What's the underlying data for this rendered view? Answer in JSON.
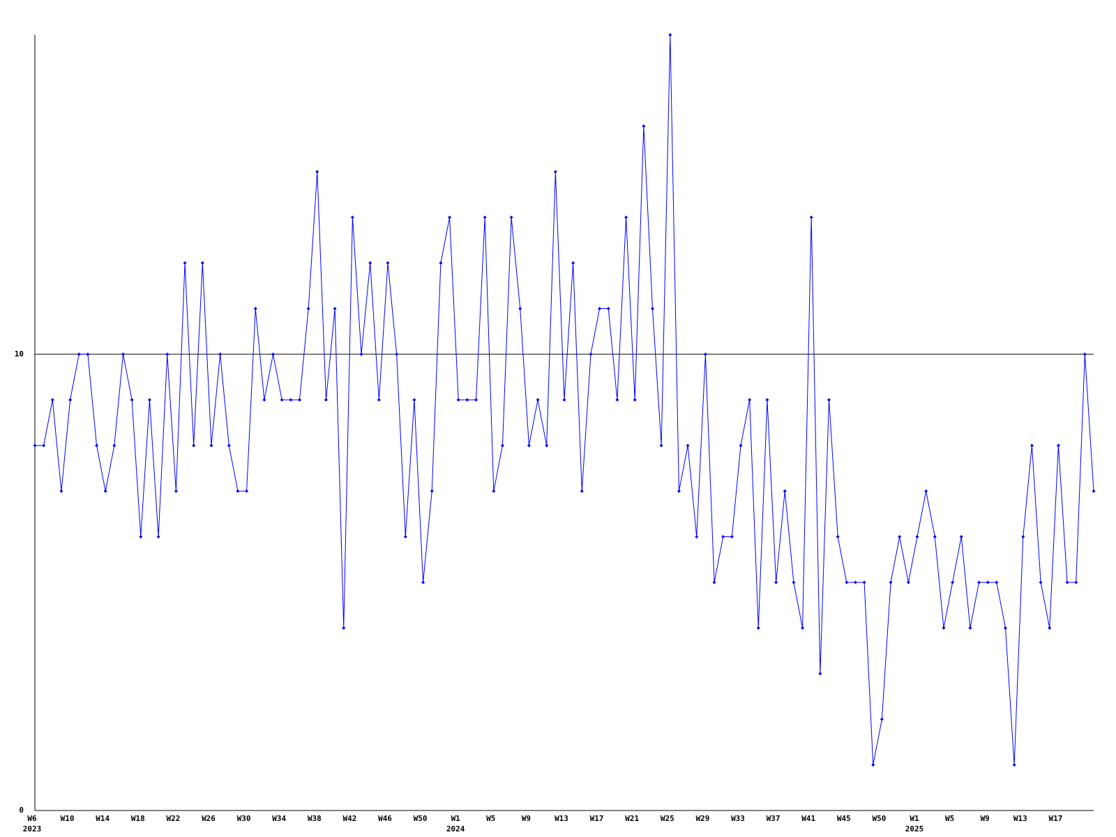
{
  "chart_data": {
    "type": "line",
    "categories": [
      "W6",
      null,
      null,
      null,
      "W10",
      null,
      null,
      null,
      "W14",
      null,
      null,
      null,
      "W18",
      null,
      null,
      null,
      "W22",
      null,
      null,
      null,
      "W26",
      null,
      null,
      null,
      "W30",
      null,
      null,
      null,
      "W34",
      null,
      null,
      null,
      "W38",
      null,
      null,
      null,
      "W42",
      null,
      null,
      null,
      "W46",
      null,
      null,
      null,
      "W50",
      null,
      null,
      null,
      "W1",
      null,
      null,
      null,
      "W5",
      null,
      null,
      null,
      "W9",
      null,
      null,
      null,
      "W13",
      null,
      null,
      null,
      "W17",
      null,
      null,
      null,
      "W21",
      null,
      null,
      null,
      "W25",
      null,
      null,
      null,
      "W29",
      null,
      null,
      null,
      "W33",
      null,
      null,
      null,
      "W37",
      null,
      null,
      null,
      "W41",
      null,
      null,
      null,
      "W45",
      null,
      null,
      null,
      "W50",
      null,
      null,
      null,
      "W1",
      null,
      null,
      null,
      "W5",
      null,
      null,
      null,
      "W9",
      null,
      null,
      null,
      "W13",
      null,
      null,
      null,
      "W17",
      null,
      null,
      null,
      null
    ],
    "category_years": [
      "2023",
      null,
      null,
      null,
      null,
      null,
      null,
      null,
      null,
      null,
      null,
      null,
      null,
      null,
      null,
      null,
      null,
      null,
      null,
      null,
      null,
      null,
      null,
      null,
      null,
      null,
      null,
      null,
      null,
      null,
      null,
      null,
      null,
      null,
      null,
      null,
      null,
      null,
      null,
      null,
      null,
      null,
      null,
      null,
      null,
      null,
      null,
      null,
      "2024",
      null,
      null,
      null,
      null,
      null,
      null,
      null,
      null,
      null,
      null,
      null,
      null,
      null,
      null,
      null,
      null,
      null,
      null,
      null,
      null,
      null,
      null,
      null,
      null,
      null,
      null,
      null,
      null,
      null,
      null,
      null,
      null,
      null,
      null,
      null,
      null,
      null,
      null,
      null,
      null,
      null,
      null,
      null,
      null,
      null,
      null,
      null,
      null,
      null,
      null,
      null,
      "2025",
      null,
      null,
      null,
      null,
      null,
      null,
      null,
      null,
      null,
      null,
      null,
      null,
      null,
      null,
      null,
      null,
      null,
      null,
      null,
      null
    ],
    "series": [
      {
        "color": "#0000ff",
        "values": [
          8,
          8,
          9,
          7,
          9,
          10,
          10,
          8,
          7,
          8,
          10,
          9,
          6,
          9,
          6,
          10,
          7,
          12,
          8,
          12,
          8,
          10,
          8,
          7,
          7,
          11,
          9,
          10,
          9,
          9,
          9,
          11,
          14,
          9,
          11,
          4,
          13,
          10,
          12,
          9,
          12,
          10,
          6,
          9,
          5,
          7,
          12,
          13,
          9,
          9,
          9,
          13,
          7,
          8,
          13,
          11,
          8,
          9,
          8,
          14,
          9,
          12,
          7,
          10,
          11,
          11,
          9,
          13,
          9,
          15,
          11,
          8,
          17,
          7,
          8,
          6,
          10,
          5,
          6,
          6,
          8,
          9,
          4,
          9,
          5,
          7,
          5,
          4,
          13,
          3,
          9,
          6,
          5,
          5,
          5,
          1,
          2,
          5,
          6,
          5,
          6,
          7,
          6,
          4,
          5,
          6,
          4,
          5,
          5,
          5,
          4,
          1,
          6,
          8,
          5,
          4,
          8,
          5,
          5,
          10,
          7
        ]
      }
    ],
    "ylim": [
      0,
      17
    ],
    "yticks": [
      0,
      10
    ],
    "grid": true
  }
}
